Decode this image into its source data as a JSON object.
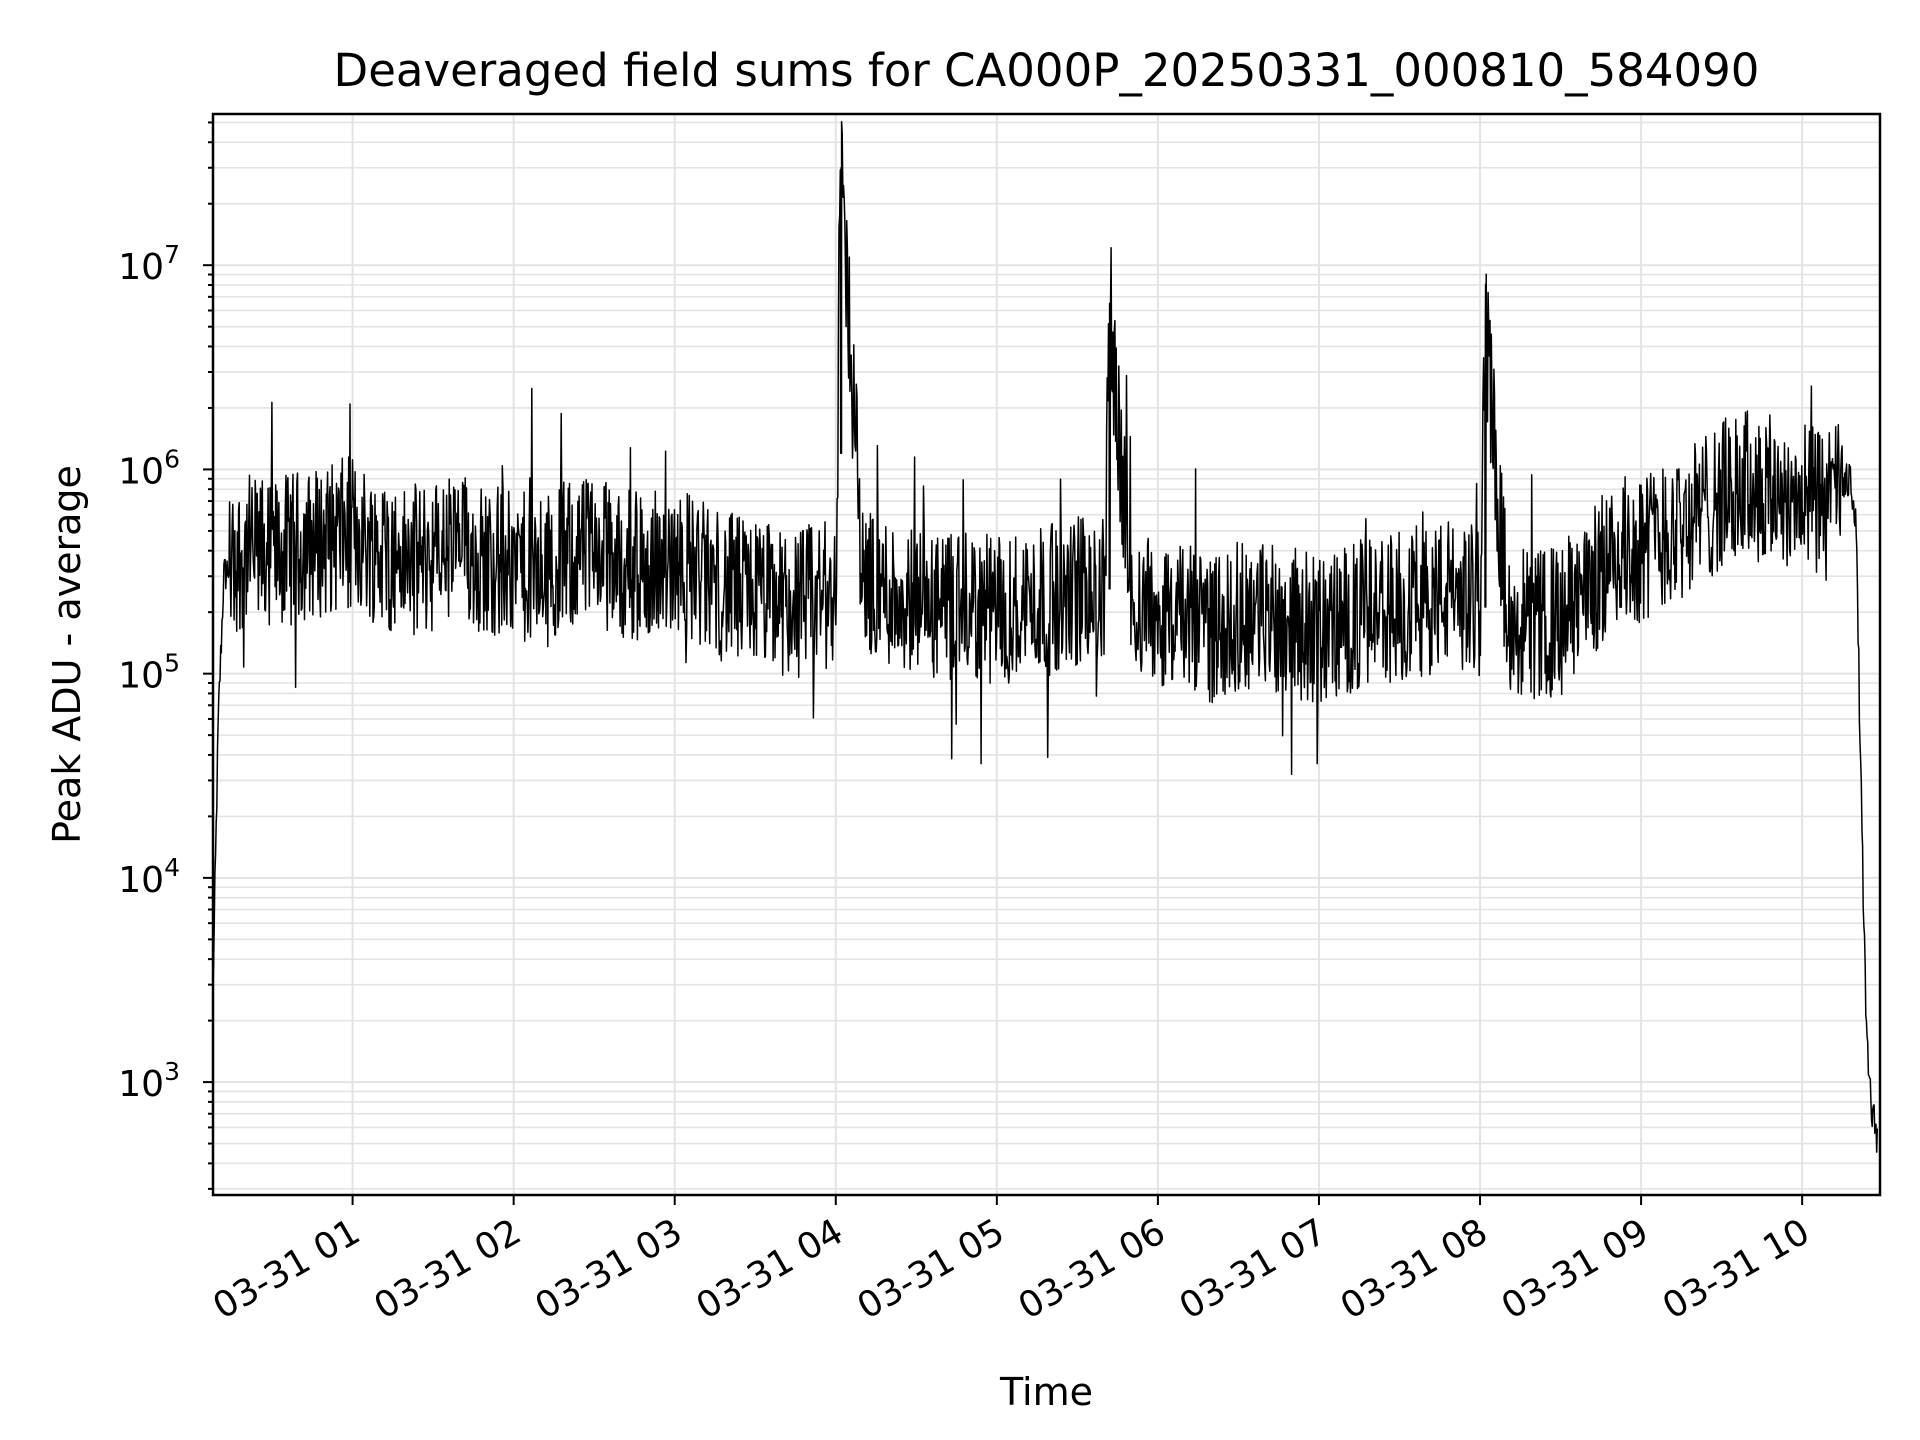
{
  "chart_data": {
    "type": "line",
    "title": "Deaveraged field sums for CA000P_20250331_000810_584090",
    "xlabel": "Time",
    "ylabel": "Peak ADU - average",
    "yscale": "log",
    "ylim": [
      280,
      55000000
    ],
    "xlim": [
      "03-31 00:08",
      "03-31 10:29"
    ],
    "grid": true,
    "x_ticks": [
      "03-31 01",
      "03-31 02",
      "03-31 03",
      "03-31 04",
      "03-31 05",
      "03-31 06",
      "03-31 07",
      "03-31 08",
      "03-31 09",
      "03-31 10"
    ],
    "y_ticks": [
      {
        "base": "10",
        "exp": "3",
        "value": 1000
      },
      {
        "base": "10",
        "exp": "4",
        "value": 10000
      },
      {
        "base": "10",
        "exp": "5",
        "value": 100000
      },
      {
        "base": "10",
        "exp": "6",
        "value": 1000000
      },
      {
        "base": "10",
        "exp": "7",
        "value": 10000000
      }
    ],
    "series": [
      {
        "color": "#000000",
        "x": [
          "03-31 00:08",
          "03-31 00:10",
          "03-31 00:12",
          "03-31 00:15",
          "03-31 00:20",
          "03-31 00:30",
          "03-31 00:40",
          "03-31 00:50",
          "03-31 01:00",
          "03-31 01:10",
          "03-31 01:20",
          "03-31 01:30",
          "03-31 01:40",
          "03-31 01:50",
          "03-31 02:00",
          "03-31 02:10",
          "03-31 02:20",
          "03-31 02:30",
          "03-31 02:40",
          "03-31 02:50",
          "03-31 03:00",
          "03-31 03:10",
          "03-31 03:20",
          "03-31 03:30",
          "03-31 03:40",
          "03-31 03:50",
          "03-31 04:00",
          "03-31 04:02",
          "03-31 04:10",
          "03-31 04:20",
          "03-31 04:30",
          "03-31 04:40",
          "03-31 04:50",
          "03-31 05:00",
          "03-31 05:10",
          "03-31 05:20",
          "03-31 05:30",
          "03-31 05:40",
          "03-31 05:42",
          "03-31 05:50",
          "03-31 06:00",
          "03-31 06:10",
          "03-31 06:20",
          "03-31 06:30",
          "03-31 06:40",
          "03-31 06:50",
          "03-31 07:00",
          "03-31 07:10",
          "03-31 07:20",
          "03-31 07:30",
          "03-31 07:40",
          "03-31 07:50",
          "03-31 08:00",
          "03-31 08:02",
          "03-31 08:10",
          "03-31 08:20",
          "03-31 08:30",
          "03-31 08:40",
          "03-31 08:50",
          "03-31 09:00",
          "03-31 09:10",
          "03-31 09:20",
          "03-31 09:30",
          "03-31 09:40",
          "03-31 09:50",
          "03-31 10:00",
          "03-31 10:10",
          "03-31 10:18",
          "03-31 10:20",
          "03-31 10:22",
          "03-31 10:24",
          "03-31 10:26",
          "03-31 10:28"
        ],
        "y": [
          2800,
          60000,
          300000,
          350000,
          400000,
          380000,
          420000,
          450000,
          500000,
          400000,
          350000,
          380000,
          420000,
          360000,
          350000,
          300000,
          380000,
          400000,
          350000,
          320000,
          400000,
          300000,
          260000,
          250000,
          220000,
          230000,
          250000,
          30000000,
          300000,
          250000,
          230000,
          200000,
          210000,
          200000,
          220000,
          230000,
          260000,
          240000,
          6500000,
          230000,
          200000,
          180000,
          170000,
          190000,
          200000,
          180000,
          160000,
          180000,
          200000,
          220000,
          230000,
          250000,
          220000,
          5300000,
          200000,
          170000,
          180000,
          260000,
          380000,
          420000,
          500000,
          600000,
          750000,
          850000,
          800000,
          720000,
          650000,
          900000,
          600000,
          25000,
          1500,
          700,
          550
        ]
      }
    ]
  }
}
